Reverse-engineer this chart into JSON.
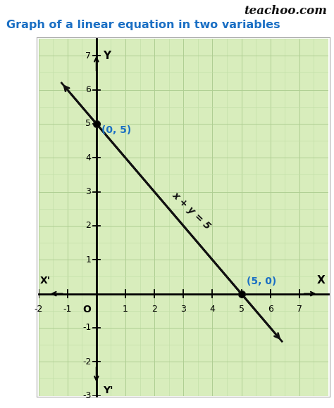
{
  "title": "Graph of a linear equation in two variables",
  "watermark": "teachoo.com",
  "title_color": "#1a6fc4",
  "watermark_color": "#111111",
  "bg_color": "#ffffff",
  "graph_bg_color": "#d8edbc",
  "grid_minor_color": "#c3dfa8",
  "grid_major_color": "#aece92",
  "line_color": "#111111",
  "point_color": "#111111",
  "label_color": "#1a6fc4",
  "equation_label": "x + y = 5",
  "points": [
    [
      0,
      5
    ],
    [
      5,
      0
    ]
  ],
  "point_labels": [
    "(0, 5)",
    "(5, 0)"
  ],
  "line_x_start": -1.2,
  "line_x_end": 6.4,
  "xlim": [
    -1.8,
    7.8
  ],
  "ylim": [
    -2.8,
    7.2
  ],
  "xticks": [
    -1,
    1,
    2,
    3,
    4,
    5,
    6,
    7
  ],
  "yticks": [
    -2,
    -1,
    1,
    2,
    3,
    4,
    5,
    6
  ],
  "axis_label_x": "X",
  "axis_label_xprime": "X'",
  "axis_label_y": "Y",
  "axis_label_yprime": "Y'",
  "origin_label": "O"
}
